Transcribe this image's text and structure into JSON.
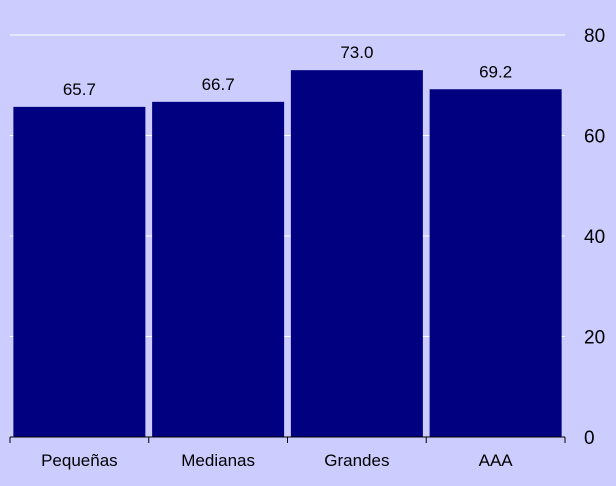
{
  "chart_data": {
    "type": "bar",
    "categories": [
      "Pequeñas",
      "Medianas",
      "Grandes",
      "AAA"
    ],
    "values": [
      65.7,
      66.7,
      73.0,
      69.2
    ],
    "data_labels": [
      "65.7",
      "66.7",
      "73.0",
      "69.2"
    ],
    "title": "",
    "xlabel": "",
    "ylabel": "",
    "ylim": [
      0,
      80
    ],
    "yticks": [
      0,
      20,
      40,
      60,
      80
    ],
    "y_axis_side": "right",
    "grid": true,
    "legend": "none",
    "colors": {
      "bar": "#000080",
      "background": "#CCCCFF",
      "gridline": "#FFFFFF",
      "axis": "#000000",
      "text": "#000000"
    }
  }
}
